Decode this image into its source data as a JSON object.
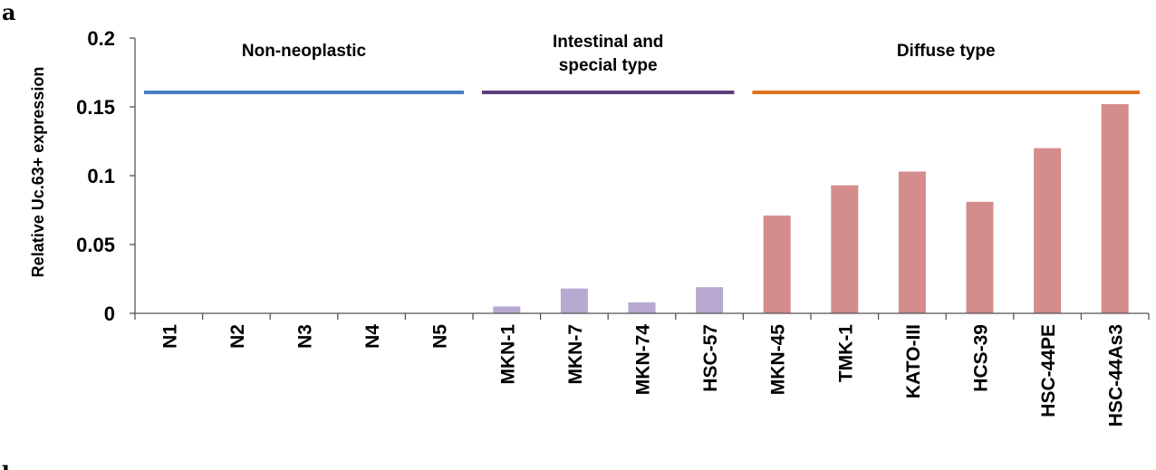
{
  "panel_labels": {
    "a": "a",
    "b": "b"
  },
  "chart_data": {
    "type": "bar",
    "title": "",
    "xlabel": "",
    "ylabel": "Relative Uc.63+ expression",
    "ylim": [
      0,
      0.2
    ],
    "yticks": [
      "0",
      "0.05",
      "0.1",
      "0.15",
      "0.2"
    ],
    "ytick_values": [
      0,
      0.05,
      0.1,
      0.15,
      0.2
    ],
    "grid": false,
    "categories": [
      "N1",
      "N2",
      "N3",
      "N4",
      "N5",
      "MKN-1",
      "MKN-7",
      "MKN-74",
      "HSC-57",
      "MKN-45",
      "TMK-1",
      "KATO-III",
      "HCS-39",
      "HSC-44PE",
      "HSC-44As3"
    ],
    "values": [
      0,
      0,
      0,
      0,
      0,
      0.005,
      0.018,
      0.008,
      0.019,
      0.071,
      0.093,
      0.103,
      0.081,
      0.12,
      0.152
    ],
    "groups": [
      {
        "label_lines": [
          "Non-neoplastic"
        ],
        "start": 0,
        "end": 4,
        "color": "#4a7ec0",
        "bar_color": "#b7a9cf"
      },
      {
        "label_lines": [
          "Intestinal and",
          "special type"
        ],
        "start": 5,
        "end": 8,
        "color": "#5e3f7c",
        "bar_color": "#b7a9cf"
      },
      {
        "label_lines": [
          "Diffuse type"
        ],
        "start": 9,
        "end": 14,
        "color": "#e0721f",
        "bar_color": "#d48c8c"
      }
    ]
  }
}
